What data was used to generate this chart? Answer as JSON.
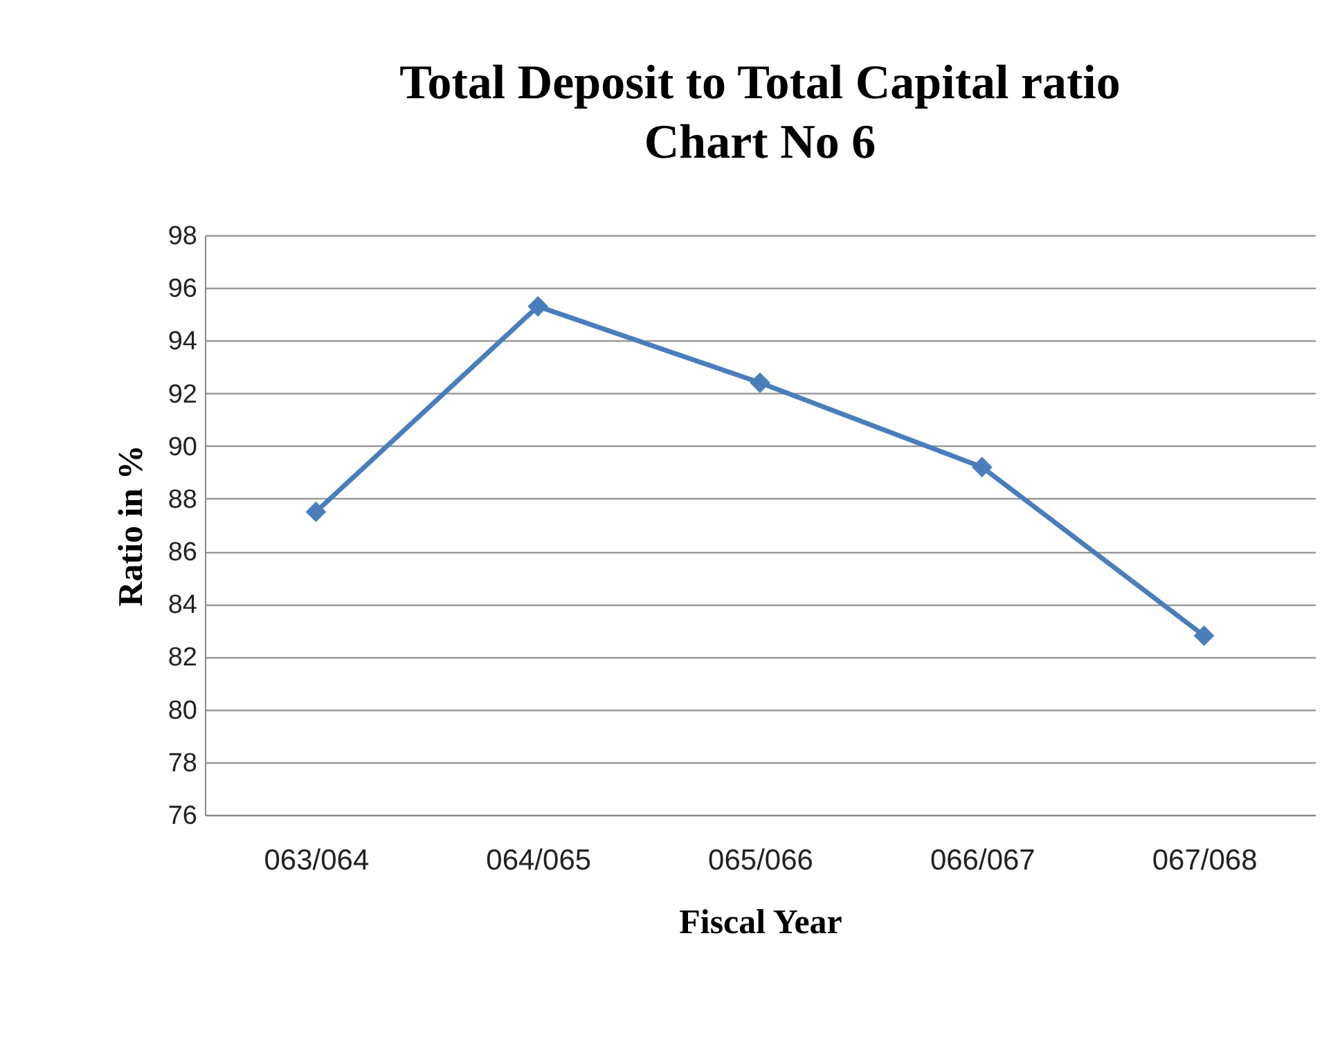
{
  "chart_data": {
    "type": "line",
    "title": "Total Deposit to Total Capital ratio",
    "subtitle": "Chart No 6",
    "xlabel": "Fiscal Year",
    "ylabel": "Ratio in %",
    "categories": [
      "063/064",
      "064/065",
      "065/066",
      "066/067",
      "067/068"
    ],
    "series": [
      {
        "color": "#4a7ebb",
        "values": [
          87.5,
          95.3,
          92.4,
          89.2,
          82.8
        ]
      }
    ],
    "ylim": [
      76,
      98
    ],
    "yticks": [
      76,
      78,
      80,
      82,
      84,
      86,
      88,
      90,
      92,
      94,
      96,
      98
    ],
    "grid": "y",
    "marker": "diamond",
    "line_style": "solid"
  }
}
